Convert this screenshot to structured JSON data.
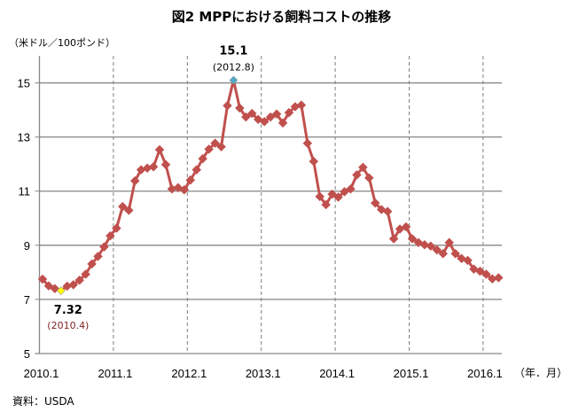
{
  "chart_data": {
    "type": "line",
    "title": "図2  MPPにおける飼料コストの推移",
    "ylabel": "（米ドル／100ポンド）",
    "xlabel": "（年．月）",
    "source": "資料：USDA",
    "ylim": [
      5,
      16
    ],
    "yticks": [
      5,
      7,
      9,
      11,
      13,
      15
    ],
    "xticks": [
      "2010.1",
      "2011.1",
      "2012.1",
      "2013.1",
      "2014.1",
      "2015.1",
      "2016.1"
    ],
    "x_start": "2010.1",
    "x_end": "2016.3",
    "grid": {
      "horizontal": "solid",
      "vertical": "dashed"
    },
    "series": [
      {
        "color": "#c0504d",
        "values": [
          7.75,
          7.5,
          7.4,
          7.32,
          7.49,
          7.54,
          7.71,
          7.93,
          8.31,
          8.59,
          8.94,
          9.35,
          9.63,
          10.43,
          10.29,
          11.38,
          11.79,
          11.85,
          11.9,
          12.53,
          11.98,
          11.08,
          11.13,
          11.05,
          11.41,
          11.79,
          12.2,
          12.55,
          12.77,
          12.64,
          14.16,
          15.1,
          14.07,
          13.74,
          13.87,
          13.65,
          13.57,
          13.74,
          13.85,
          13.52,
          13.9,
          14.12,
          14.18,
          12.77,
          12.1,
          10.8,
          10.5,
          10.89,
          10.78,
          10.98,
          11.08,
          11.6,
          11.88,
          11.49,
          10.56,
          10.32,
          10.25,
          9.24,
          9.6,
          9.68,
          9.24,
          9.1,
          9.02,
          8.97,
          8.83,
          8.69,
          9.1,
          8.69,
          8.51,
          8.44,
          8.12,
          8.04,
          7.93,
          7.76,
          7.8
        ]
      }
    ],
    "annotations": [
      {
        "label": "15.1",
        "sub": "(2012.8)",
        "index": 31,
        "marker_color": "#4bacc6"
      },
      {
        "label": "7.32",
        "sub": "(2010.4)",
        "index": 3,
        "marker_color": "#ffff00"
      }
    ]
  }
}
